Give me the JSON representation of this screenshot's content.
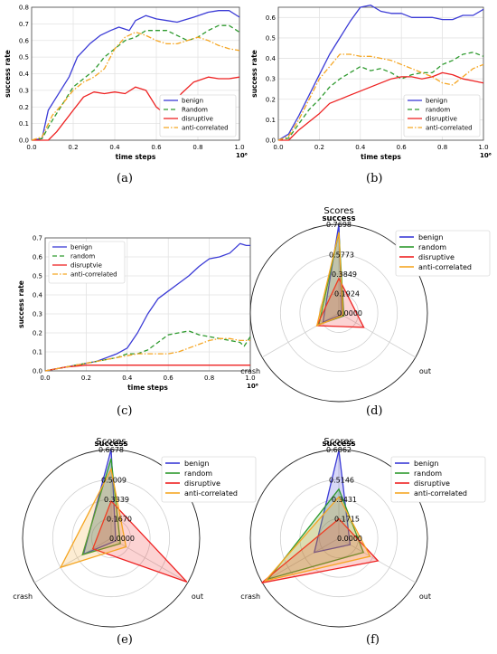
{
  "captions": [
    "(a)",
    "(b)",
    "(c)",
    "(d)",
    "(e)",
    "(f)"
  ],
  "colors": {
    "benign": "#3b3bd6",
    "random": "#2e9a2e",
    "disruptive": "#ee2222",
    "anti": "#f5a623"
  },
  "chart_data": [
    {
      "id": "a",
      "type": "line",
      "xlabel": "time steps",
      "ylabel": "success rate",
      "x_multiplier": "10⁶",
      "xlim": [
        0,
        1
      ],
      "ylim": [
        0,
        0.8
      ],
      "xticks": [
        "0.0",
        "0.2",
        "0.4",
        "0.6",
        "0.8",
        "1.0"
      ],
      "yticks": [
        "0.0",
        "0.1",
        "0.2",
        "0.3",
        "0.4",
        "0.5",
        "0.6",
        "0.7",
        "0.8"
      ],
      "legend_position": "bottom-right",
      "series": [
        {
          "name": "benign",
          "style": "solid",
          "color": "#3b3bd6",
          "x": [
            0.0,
            0.05,
            0.08,
            0.12,
            0.18,
            0.22,
            0.28,
            0.33,
            0.38,
            0.42,
            0.47,
            0.5,
            0.55,
            0.6,
            0.65,
            0.7,
            0.78,
            0.85,
            0.9,
            0.95,
            1.0
          ],
          "y": [
            0.0,
            0.01,
            0.18,
            0.26,
            0.38,
            0.5,
            0.58,
            0.63,
            0.66,
            0.68,
            0.66,
            0.72,
            0.75,
            0.73,
            0.72,
            0.71,
            0.74,
            0.77,
            0.78,
            0.78,
            0.74
          ]
        },
        {
          "name": "Random",
          "style": "dashed",
          "color": "#2e9a2e",
          "x": [
            0.0,
            0.05,
            0.1,
            0.15,
            0.2,
            0.25,
            0.3,
            0.35,
            0.4,
            0.45,
            0.5,
            0.55,
            0.6,
            0.65,
            0.7,
            0.75,
            0.8,
            0.85,
            0.9,
            0.95,
            1.0
          ],
          "y": [
            0.0,
            0.01,
            0.12,
            0.22,
            0.32,
            0.37,
            0.42,
            0.5,
            0.55,
            0.6,
            0.62,
            0.66,
            0.66,
            0.66,
            0.63,
            0.6,
            0.62,
            0.66,
            0.69,
            0.69,
            0.65
          ]
        },
        {
          "name": "disruptive",
          "style": "solid",
          "color": "#ee2222",
          "x": [
            0.0,
            0.08,
            0.12,
            0.2,
            0.25,
            0.3,
            0.35,
            0.4,
            0.45,
            0.5,
            0.55,
            0.6,
            0.63,
            0.67,
            0.72,
            0.78,
            0.85,
            0.9,
            0.95,
            1.0
          ],
          "y": [
            0.0,
            0.0,
            0.05,
            0.18,
            0.26,
            0.29,
            0.28,
            0.29,
            0.28,
            0.32,
            0.3,
            0.2,
            0.17,
            0.2,
            0.28,
            0.35,
            0.38,
            0.37,
            0.37,
            0.38
          ]
        },
        {
          "name": "anti-correlated",
          "style": "dashdot",
          "color": "#f5a623",
          "x": [
            0.0,
            0.05,
            0.1,
            0.15,
            0.2,
            0.25,
            0.3,
            0.35,
            0.4,
            0.45,
            0.5,
            0.55,
            0.6,
            0.65,
            0.7,
            0.75,
            0.8,
            0.85,
            0.9,
            0.95,
            1.0
          ],
          "y": [
            0.0,
            0.02,
            0.15,
            0.22,
            0.3,
            0.35,
            0.38,
            0.43,
            0.55,
            0.62,
            0.65,
            0.63,
            0.6,
            0.58,
            0.58,
            0.6,
            0.62,
            0.6,
            0.57,
            0.55,
            0.54
          ]
        }
      ]
    },
    {
      "id": "b",
      "type": "line",
      "xlabel": "time steps",
      "ylabel": "success rate",
      "x_multiplier": "10⁶",
      "xlim": [
        0,
        1
      ],
      "ylim": [
        0,
        0.65
      ],
      "xticks": [
        "0.0",
        "0.2",
        "0.4",
        "0.6",
        "0.8",
        "1.0"
      ],
      "yticks": [
        "0.0",
        "0.1",
        "0.2",
        "0.3",
        "0.4",
        "0.5",
        "0.6"
      ],
      "legend_position": "bottom-right",
      "series": [
        {
          "name": "benign",
          "style": "solid",
          "color": "#3b3bd6",
          "x": [
            0.0,
            0.05,
            0.1,
            0.15,
            0.2,
            0.25,
            0.3,
            0.35,
            0.4,
            0.45,
            0.5,
            0.55,
            0.6,
            0.65,
            0.7,
            0.75,
            0.8,
            0.85,
            0.9,
            0.95,
            1.0
          ],
          "y": [
            0.0,
            0.03,
            0.12,
            0.22,
            0.32,
            0.42,
            0.5,
            0.58,
            0.65,
            0.66,
            0.63,
            0.62,
            0.62,
            0.6,
            0.6,
            0.6,
            0.59,
            0.59,
            0.61,
            0.61,
            0.64
          ]
        },
        {
          "name": "random",
          "style": "dashed",
          "color": "#2e9a2e",
          "x": [
            0.0,
            0.05,
            0.1,
            0.15,
            0.2,
            0.25,
            0.3,
            0.35,
            0.4,
            0.45,
            0.5,
            0.55,
            0.6,
            0.65,
            0.7,
            0.75,
            0.8,
            0.85,
            0.9,
            0.95,
            1.0
          ],
          "y": [
            0.0,
            0.01,
            0.08,
            0.15,
            0.2,
            0.26,
            0.3,
            0.33,
            0.36,
            0.34,
            0.35,
            0.33,
            0.3,
            0.32,
            0.33,
            0.33,
            0.37,
            0.39,
            0.42,
            0.43,
            0.41
          ]
        },
        {
          "name": "disruptive",
          "style": "solid",
          "color": "#ee2222",
          "x": [
            0.0,
            0.05,
            0.1,
            0.15,
            0.2,
            0.25,
            0.3,
            0.35,
            0.4,
            0.45,
            0.5,
            0.55,
            0.6,
            0.65,
            0.7,
            0.75,
            0.8,
            0.85,
            0.9,
            0.95,
            1.0
          ],
          "y": [
            0.0,
            0.0,
            0.05,
            0.09,
            0.13,
            0.18,
            0.2,
            0.22,
            0.24,
            0.26,
            0.28,
            0.3,
            0.31,
            0.31,
            0.3,
            0.31,
            0.33,
            0.32,
            0.3,
            0.29,
            0.28
          ]
        },
        {
          "name": "anti-correlated",
          "style": "dashdot",
          "color": "#f5a623",
          "x": [
            0.0,
            0.05,
            0.1,
            0.15,
            0.2,
            0.25,
            0.3,
            0.35,
            0.4,
            0.45,
            0.5,
            0.55,
            0.6,
            0.65,
            0.7,
            0.75,
            0.8,
            0.85,
            0.9,
            0.95,
            1.0
          ],
          "y": [
            0.0,
            0.02,
            0.1,
            0.2,
            0.3,
            0.36,
            0.42,
            0.42,
            0.41,
            0.41,
            0.4,
            0.39,
            0.37,
            0.35,
            0.33,
            0.31,
            0.28,
            0.27,
            0.31,
            0.35,
            0.37
          ]
        }
      ]
    },
    {
      "id": "c",
      "type": "line",
      "xlabel": "time steps",
      "ylabel": "success rate",
      "x_multiplier": "10⁶",
      "xlim": [
        0,
        1
      ],
      "ylim": [
        0,
        0.7
      ],
      "xticks": [
        "0.0",
        "0.2",
        "0.4",
        "0.6",
        "0.8",
        "1.0"
      ],
      "yticks": [
        "0.0",
        "0.1",
        "0.2",
        "0.3",
        "0.4",
        "0.5",
        "0.6",
        "0.7"
      ],
      "legend_position": "top-left",
      "series": [
        {
          "name": "benign",
          "style": "solid",
          "color": "#3b3bd6",
          "x": [
            0.0,
            0.05,
            0.1,
            0.15,
            0.2,
            0.25,
            0.3,
            0.35,
            0.4,
            0.45,
            0.5,
            0.55,
            0.6,
            0.65,
            0.7,
            0.75,
            0.8,
            0.85,
            0.9,
            0.95,
            0.98,
            1.0
          ],
          "y": [
            0.0,
            0.01,
            0.02,
            0.03,
            0.04,
            0.05,
            0.07,
            0.09,
            0.12,
            0.2,
            0.3,
            0.38,
            0.42,
            0.46,
            0.5,
            0.55,
            0.59,
            0.6,
            0.62,
            0.67,
            0.66,
            0.66
          ]
        },
        {
          "name": "random",
          "style": "dashed",
          "color": "#2e9a2e",
          "x": [
            0.0,
            0.05,
            0.1,
            0.15,
            0.2,
            0.25,
            0.3,
            0.35,
            0.4,
            0.45,
            0.5,
            0.55,
            0.6,
            0.65,
            0.7,
            0.75,
            0.8,
            0.85,
            0.9,
            0.95,
            0.97,
            1.0
          ],
          "y": [
            0.0,
            0.01,
            0.02,
            0.03,
            0.04,
            0.05,
            0.06,
            0.07,
            0.09,
            0.09,
            0.11,
            0.15,
            0.19,
            0.2,
            0.21,
            0.19,
            0.18,
            0.17,
            0.16,
            0.15,
            0.13,
            0.18
          ]
        },
        {
          "name": "disruptvie",
          "style": "solid",
          "color": "#ee2222",
          "x": [
            0.0,
            0.05,
            0.1,
            0.2,
            0.3,
            0.4,
            0.5,
            0.6,
            0.7,
            0.8,
            0.9,
            1.0
          ],
          "y": [
            0.0,
            0.01,
            0.02,
            0.03,
            0.03,
            0.03,
            0.03,
            0.03,
            0.03,
            0.03,
            0.03,
            0.03
          ]
        },
        {
          "name": "anti-correlated",
          "style": "dashdot",
          "color": "#f5a623",
          "x": [
            0.0,
            0.05,
            0.1,
            0.15,
            0.2,
            0.25,
            0.3,
            0.35,
            0.4,
            0.45,
            0.5,
            0.55,
            0.6,
            0.65,
            0.7,
            0.75,
            0.8,
            0.85,
            0.9,
            0.95,
            1.0
          ],
          "y": [
            0.0,
            0.01,
            0.02,
            0.03,
            0.04,
            0.05,
            0.06,
            0.07,
            0.08,
            0.09,
            0.09,
            0.09,
            0.09,
            0.1,
            0.12,
            0.14,
            0.16,
            0.17,
            0.17,
            0.16,
            0.16
          ]
        }
      ]
    },
    {
      "id": "d",
      "type": "radar",
      "title": "Scores",
      "axes": [
        "success",
        "out",
        "crash"
      ],
      "ring_labels": [
        "0.7698",
        "0.5773",
        "0.3849",
        "0.1924",
        "0.0000"
      ],
      "rmax": 0.7698,
      "legend_position": "top-right",
      "series": [
        {
          "name": "benign",
          "color": "#3b3bd6",
          "values": [
            0.77,
            0.03,
            0.16
          ]
        },
        {
          "name": "random",
          "color": "#2e9a2e",
          "values": [
            0.7,
            0.05,
            0.2
          ]
        },
        {
          "name": "disruptive",
          "color": "#ee2222",
          "values": [
            0.3,
            0.25,
            0.22
          ]
        },
        {
          "name": "anti-correlated",
          "color": "#f5a623",
          "values": [
            0.7,
            0.04,
            0.22
          ]
        }
      ]
    },
    {
      "id": "e",
      "type": "radar",
      "title": "Scores",
      "axes": [
        "success",
        "out",
        "crash"
      ],
      "ring_labels": [
        "0.6678",
        "0.5009",
        "0.3339",
        "0.1670",
        "0.0000"
      ],
      "rmax": 0.6678,
      "legend_position": "top-right",
      "series": [
        {
          "name": "benign",
          "color": "#3b3bd6",
          "values": [
            0.67,
            0.04,
            0.24
          ]
        },
        {
          "name": "random",
          "color": "#2e9a2e",
          "values": [
            0.6,
            0.08,
            0.25
          ]
        },
        {
          "name": "disruptive",
          "color": "#ee2222",
          "values": [
            0.28,
            0.66,
            0.16
          ]
        },
        {
          "name": "anti-correlated",
          "color": "#f5a623",
          "values": [
            0.52,
            0.13,
            0.44
          ]
        }
      ]
    },
    {
      "id": "f",
      "type": "radar",
      "title": "Scores",
      "axes": [
        "success",
        "out",
        "crash"
      ],
      "ring_labels": [
        "0.6862",
        "0.5146",
        "0.3431",
        "0.1715",
        "0.0000"
      ],
      "rmax": 0.6862,
      "legend_position": "top-right",
      "series": [
        {
          "name": "benign",
          "color": "#3b3bd6",
          "values": [
            0.68,
            0.1,
            0.22
          ]
        },
        {
          "name": "random",
          "color": "#2e9a2e",
          "values": [
            0.38,
            0.22,
            0.63
          ]
        },
        {
          "name": "disruptive",
          "color": "#ee2222",
          "values": [
            0.15,
            0.35,
            0.69
          ]
        },
        {
          "name": "anti-correlated",
          "color": "#f5a623",
          "values": [
            0.32,
            0.28,
            0.66
          ]
        }
      ]
    }
  ]
}
